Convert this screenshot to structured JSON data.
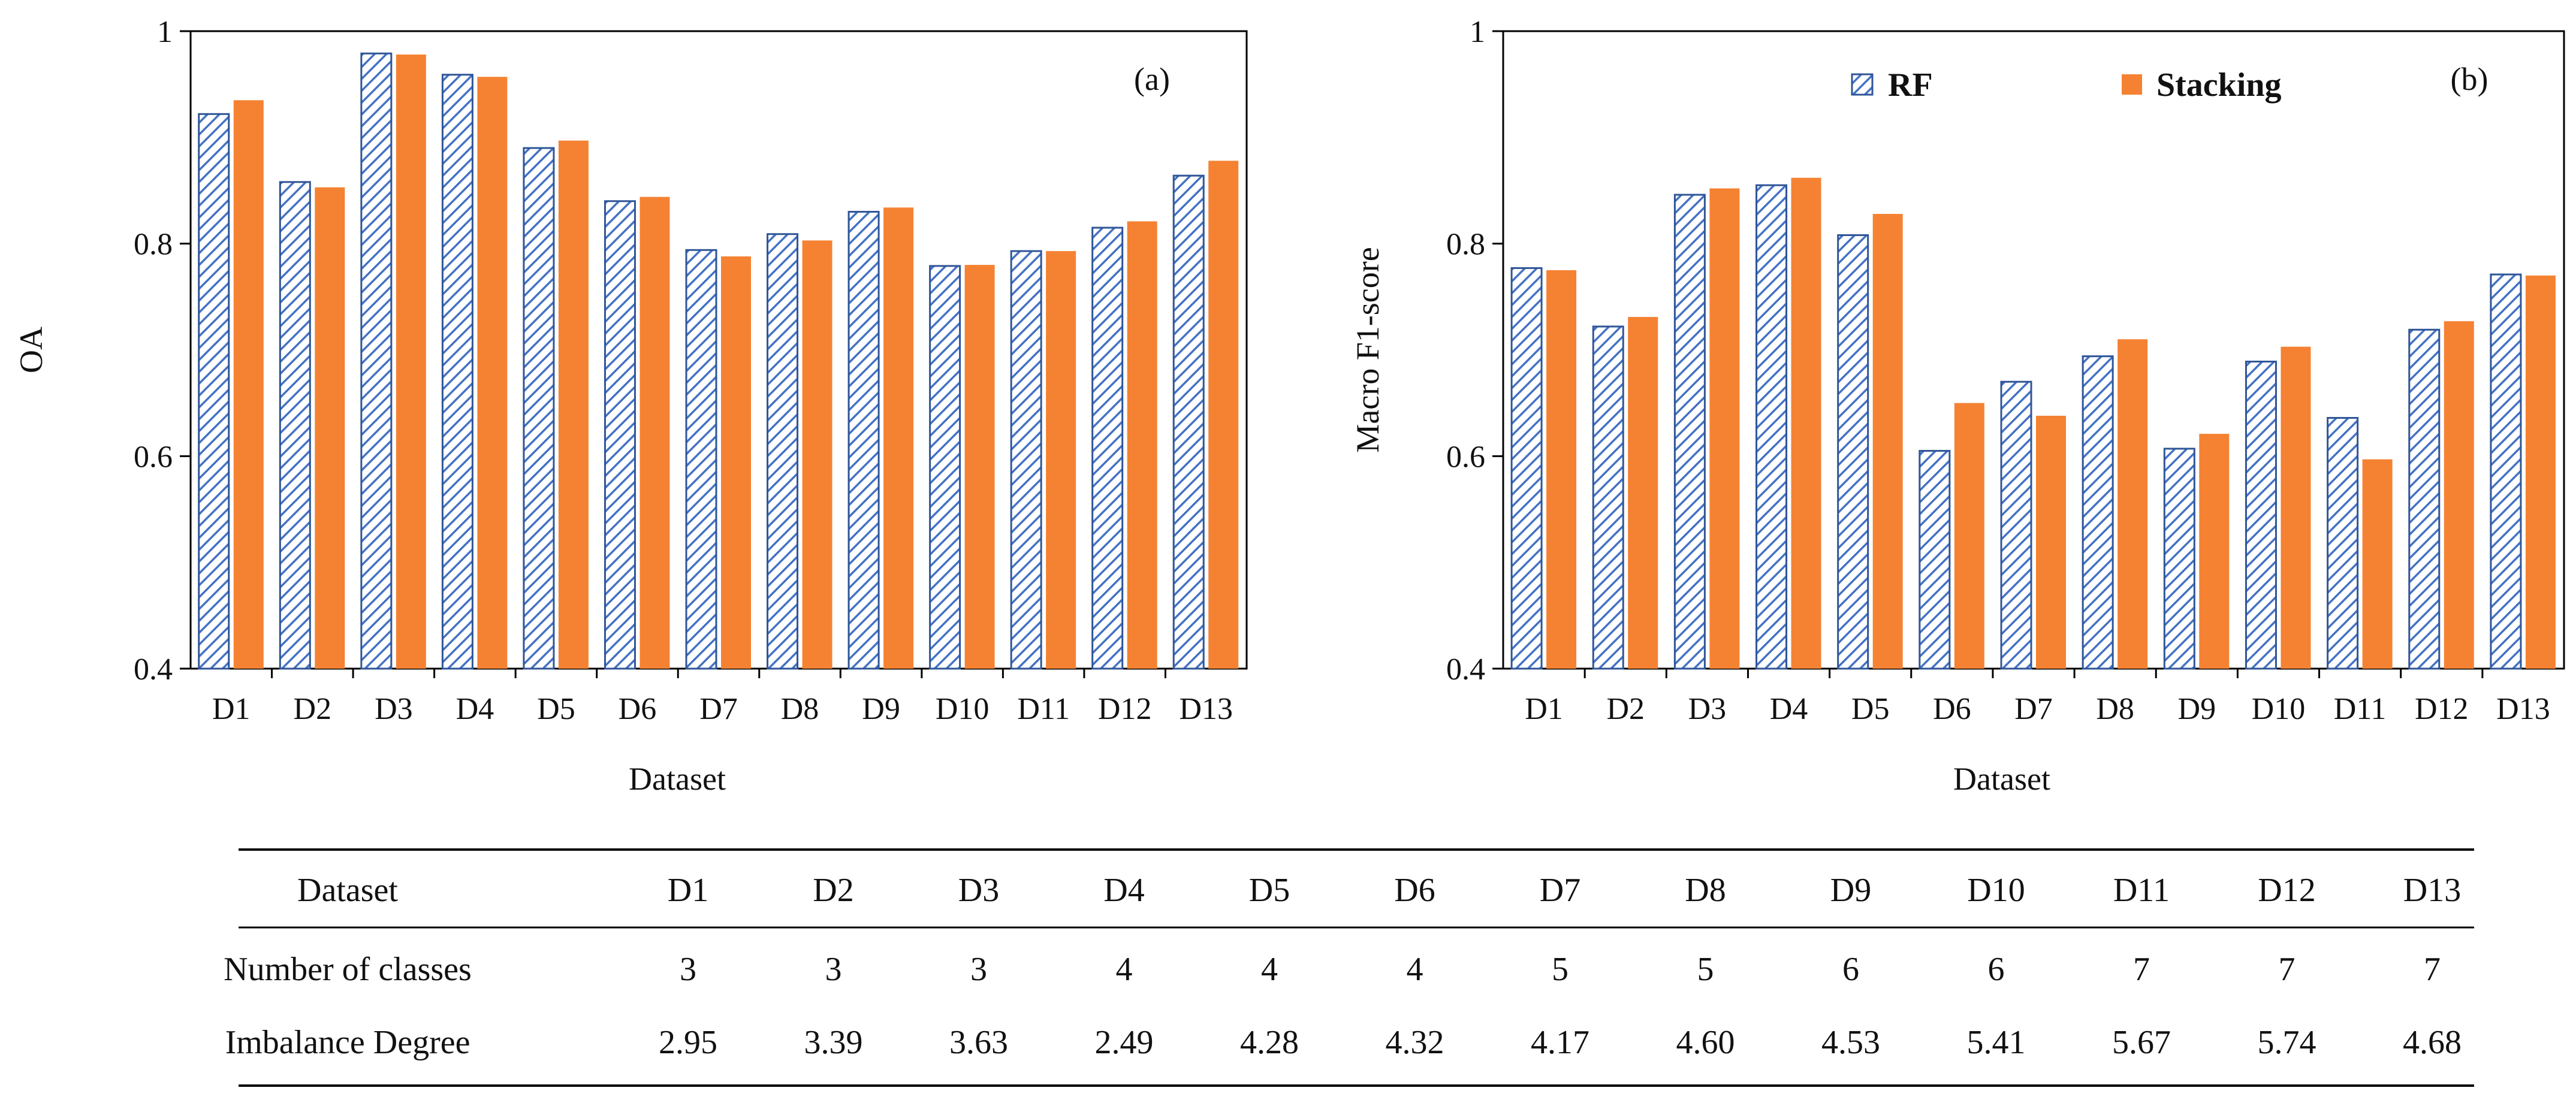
{
  "chart_data": [
    {
      "type": "bar",
      "panel": "(a)",
      "xlabel": "Dataset",
      "ylabel": "OA",
      "ylim": [
        0.4,
        1.0
      ],
      "yticks": [
        "0.4",
        "0.6",
        "0.8",
        "1"
      ],
      "yticks_values": [
        0.4,
        0.6,
        0.8,
        1.0
      ],
      "categories": [
        "D1",
        "D2",
        "D3",
        "D4",
        "D5",
        "D6",
        "D7",
        "D8",
        "D9",
        "D10",
        "D11",
        "D12",
        "D13"
      ],
      "series": [
        {
          "name": "RF",
          "values": [
            0.922,
            0.858,
            0.979,
            0.959,
            0.89,
            0.84,
            0.794,
            0.809,
            0.83,
            0.779,
            0.793,
            0.815,
            0.864
          ]
        },
        {
          "name": "Stacking",
          "values": [
            0.935,
            0.853,
            0.978,
            0.957,
            0.897,
            0.844,
            0.788,
            0.803,
            0.834,
            0.78,
            0.793,
            0.821,
            0.878
          ]
        }
      ]
    },
    {
      "type": "bar",
      "panel": "(b)",
      "xlabel": "Dataset",
      "ylabel": "Macro F1-score",
      "ylim": [
        0.4,
        1.0
      ],
      "yticks": [
        "0.4",
        "0.6",
        "0.8",
        "1"
      ],
      "yticks_values": [
        0.4,
        0.6,
        0.8,
        1.0
      ],
      "categories": [
        "D1",
        "D2",
        "D3",
        "D4",
        "D5",
        "D6",
        "D7",
        "D8",
        "D9",
        "D10",
        "D11",
        "D12",
        "D13"
      ],
      "legend": {
        "position": "top-center"
      },
      "series": [
        {
          "name": "RF",
          "values": [
            0.777,
            0.722,
            0.846,
            0.855,
            0.808,
            0.605,
            0.67,
            0.694,
            0.607,
            0.689,
            0.636,
            0.719,
            0.771
          ]
        },
        {
          "name": "Stacking",
          "values": [
            0.775,
            0.731,
            0.852,
            0.862,
            0.828,
            0.65,
            0.638,
            0.71,
            0.621,
            0.703,
            0.597,
            0.727,
            0.77
          ]
        }
      ]
    },
    {
      "type": "table",
      "columns": [
        "Dataset",
        "D1",
        "D2",
        "D3",
        "D4",
        "D5",
        "D6",
        "D7",
        "D8",
        "D9",
        "D10",
        "D11",
        "D12",
        "D13"
      ],
      "rows": [
        [
          "Number of classes",
          "3",
          "3",
          "3",
          "4",
          "4",
          "4",
          "5",
          "5",
          "6",
          "6",
          "7",
          "7",
          "7"
        ],
        [
          "Imbalance Degree",
          "2.95",
          "3.39",
          "3.63",
          "2.49",
          "4.28",
          "4.32",
          "4.17",
          "4.60",
          "4.53",
          "5.41",
          "5.67",
          "5.74",
          "4.68"
        ]
      ]
    }
  ],
  "colors": {
    "rf_stroke": "#2F5597",
    "rf_hatch": "#4472C4",
    "stacking": "#F58232",
    "axis": "#000000"
  }
}
